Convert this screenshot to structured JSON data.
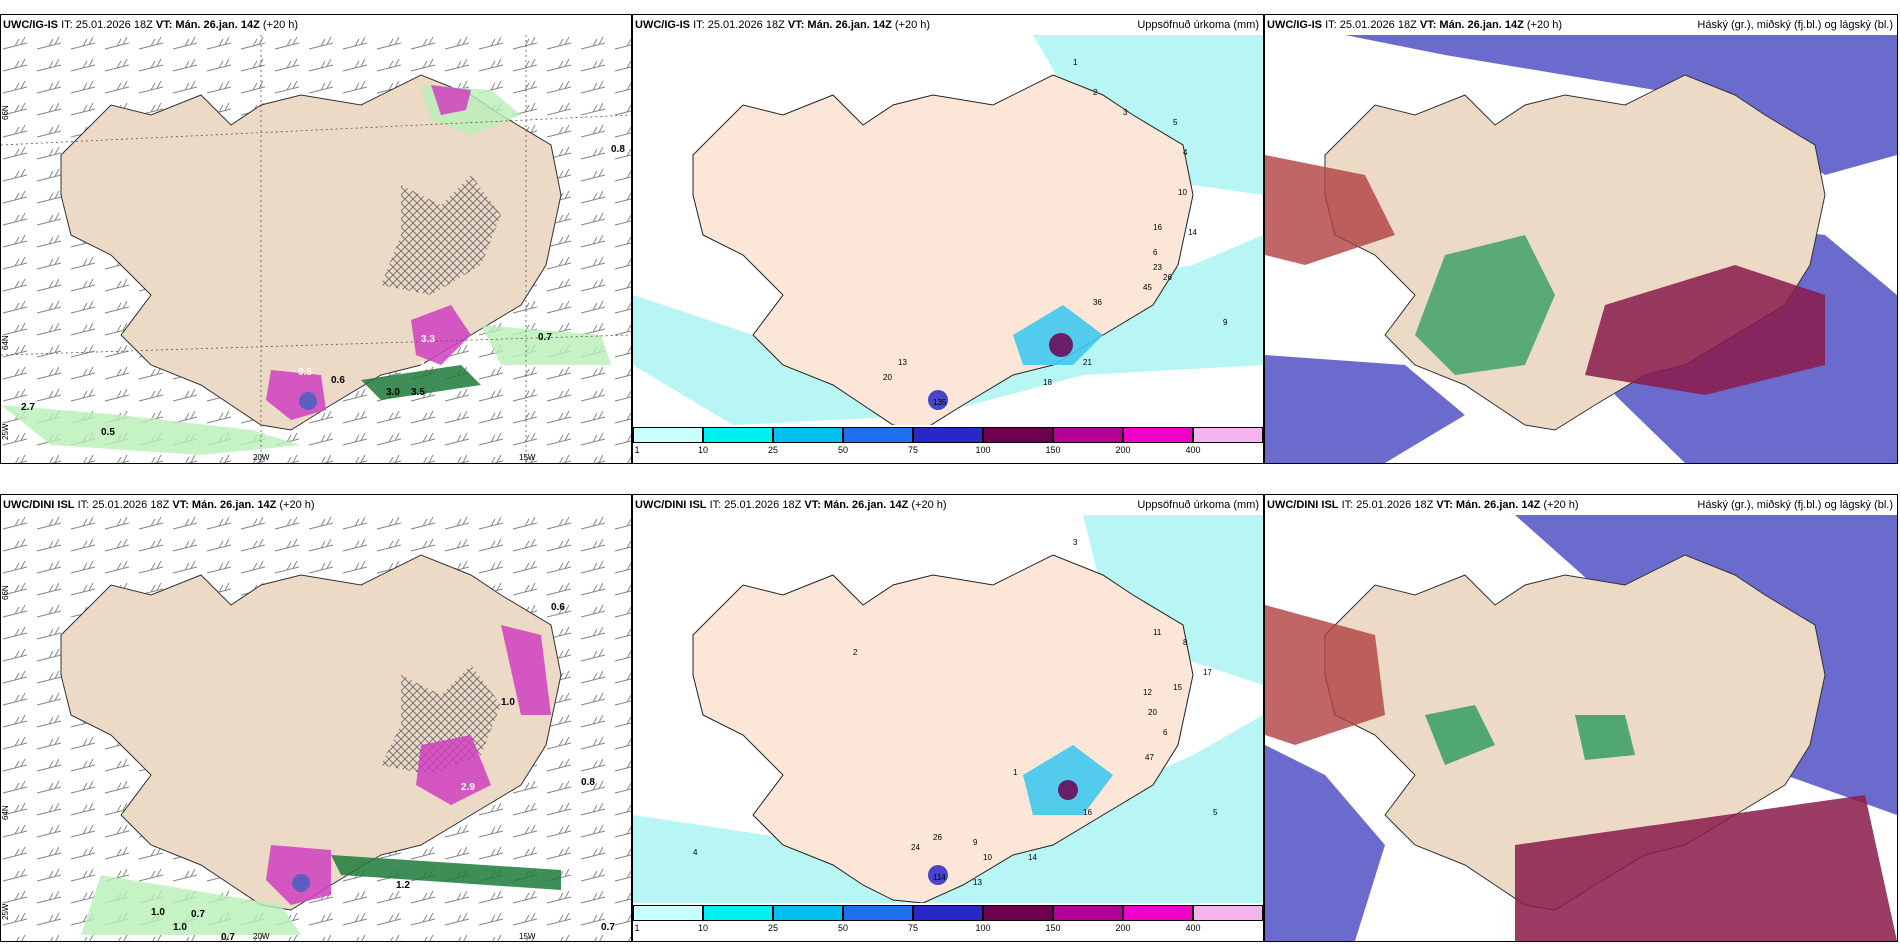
{
  "panels": {
    "top_left": {
      "model": "UWC/IG-IS",
      "it": "IT: 25.01.2026 18Z",
      "vt_label": "VT:",
      "vt": "Mán. 26.jan. 14Z",
      "lead": "(+20 h)",
      "title": ""
    },
    "top_mid": {
      "model": "UWC/IG-IS",
      "it": "IT: 25.01.2026 18Z",
      "vt_label": "VT:",
      "vt": "Mán. 26.jan. 14Z",
      "lead": "(+20 h)",
      "title": "Uppsöfnuð úrkoma (mm)"
    },
    "top_right": {
      "model": "UWC/IG-IS",
      "it": "IT: 25.01.2026 18Z",
      "vt_label": "VT:",
      "vt": "Mán. 26.jan. 14Z",
      "lead": "(+20 h)",
      "title": "Háský (gr.), miðský (fj.bl.) og lágský (bl.)"
    },
    "bottom_left": {
      "model": "UWC/DINI ISL",
      "it": "IT: 25.01.2026 18Z",
      "vt_label": "VT:",
      "vt": "Mán. 26.jan. 14Z",
      "lead": "(+20 h)",
      "title": ""
    },
    "bottom_mid": {
      "model": "UWC/DINI ISL",
      "it": "IT: 25.01.2026 18Z",
      "vt_label": "VT:",
      "vt": "Mán. 26.jan. 14Z",
      "lead": "(+20 h)",
      "title": "Uppsöfnuð úrkoma (mm)"
    },
    "bottom_right": {
      "model": "UWC/DINI ISL",
      "it": "IT: 25.01.2026 18Z",
      "vt_label": "VT:",
      "vt": "Mán. 26.jan. 14Z",
      "lead": "(+20 h)",
      "title": "Háský (gr.), miðský (fj.bl.) og lágský (bl.)"
    }
  },
  "axes": {
    "lat_66": "66N",
    "lat_64": "64N",
    "lat_63": "63N",
    "lon_20": "20W",
    "lon_15": "15W",
    "lon_25": "25W"
  },
  "colorbar": {
    "ticks": [
      "1",
      "10",
      "25",
      "50",
      "75",
      "100",
      "150",
      "200",
      "400"
    ],
    "colors": [
      "#c8ffff",
      "#00f0f0",
      "#00c0f0",
      "#1e6ef0",
      "#2828c8",
      "#6e0050",
      "#b40096",
      "#f000c8",
      "#f5b4f0"
    ]
  },
  "labels": {
    "tl": [
      "0.5",
      "0.6",
      "0.7",
      "0.8",
      "3.3",
      "2.0",
      "0.5",
      "2.7",
      "3.0",
      "3.5"
    ],
    "tm": [
      "1",
      "2",
      "3",
      "4",
      "5",
      "6",
      "9",
      "10",
      "13",
      "14",
      "16",
      "18",
      "20",
      "21",
      "23",
      "26",
      "36",
      "45",
      "135"
    ],
    "bl": [
      "1.0",
      "0.7",
      "1.0",
      "0.7",
      "0.6",
      "0.8",
      "0.7",
      "2.9",
      "1.2",
      "1.0"
    ],
    "bm": [
      "1",
      "2",
      "3",
      "4",
      "5",
      "6",
      "8",
      "9",
      "10",
      "11",
      "12",
      "13",
      "14",
      "15",
      "16",
      "17",
      "20",
      "24",
      "26",
      "47",
      "114"
    ]
  }
}
